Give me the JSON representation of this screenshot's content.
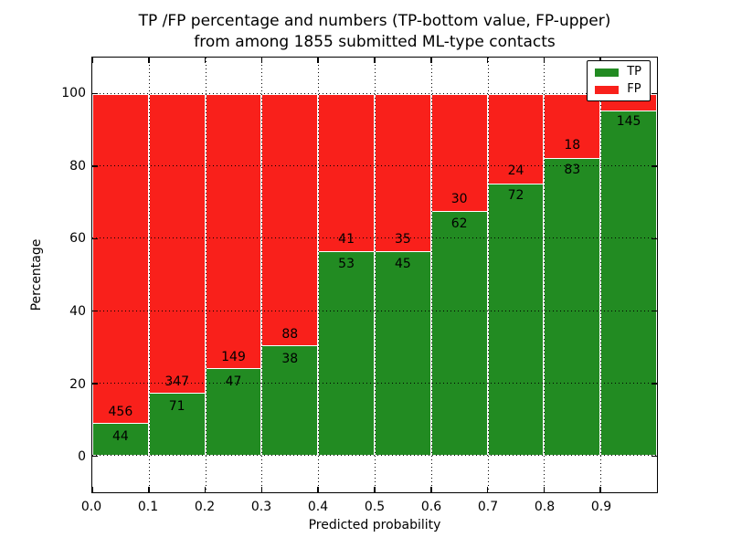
{
  "figure": {
    "title_line1": "TP /FP percentage and numbers (TP-bottom value, FP-upper)",
    "title_line2": "from among 1855 submitted ML-type contacts"
  },
  "chart_data": {
    "type": "bar",
    "stacked": true,
    "title": "TP /FP percentage and numbers (TP-bottom value, FP-upper) from among 1855 submitted ML-type contacts",
    "xlabel": "Predicted probability",
    "ylabel": "Percentage",
    "xlim": [
      0.0,
      1.0
    ],
    "ylim": [
      -10,
      110
    ],
    "x_tick_labels": [
      "0.0",
      "0.1",
      "0.2",
      "0.3",
      "0.4",
      "0.5",
      "0.6",
      "0.7",
      "0.8",
      "0.9"
    ],
    "y_tick_values": [
      0,
      20,
      40,
      60,
      80,
      100
    ],
    "grid_style": "dotted",
    "total_submitted": 1855,
    "colors": {
      "tp": "#228B22",
      "fp": "#F9201B",
      "bar_edge": "#FFFFFF",
      "grid": "#000000",
      "text": "#000000"
    },
    "legend": {
      "position": "upper-right",
      "entries": [
        {
          "label": "TP",
          "color": "#228B22"
        },
        {
          "label": "FP",
          "color": "#F9201B"
        }
      ]
    },
    "bins": [
      {
        "x0": 0.0,
        "x1": 0.1,
        "tp_count": 44,
        "fp_count": 456,
        "tp_percent": 8.8,
        "fp_percent": 91.2
      },
      {
        "x0": 0.1,
        "x1": 0.2,
        "tp_count": 71,
        "fp_count": 347,
        "tp_percent": 17.0,
        "fp_percent": 83.0
      },
      {
        "x0": 0.2,
        "x1": 0.3,
        "tp_count": 47,
        "fp_count": 149,
        "tp_percent": 24.0,
        "fp_percent": 76.0
      },
      {
        "x0": 0.3,
        "x1": 0.4,
        "tp_count": 38,
        "fp_count": 88,
        "tp_percent": 30.2,
        "fp_percent": 69.8
      },
      {
        "x0": 0.4,
        "x1": 0.5,
        "tp_count": 53,
        "fp_count": 41,
        "tp_percent": 56.4,
        "fp_percent": 43.6
      },
      {
        "x0": 0.5,
        "x1": 0.6,
        "tp_count": 45,
        "fp_count": 35,
        "tp_percent": 56.3,
        "fp_percent": 43.7
      },
      {
        "x0": 0.6,
        "x1": 0.7,
        "tp_count": 62,
        "fp_count": 30,
        "tp_percent": 67.4,
        "fp_percent": 32.6
      },
      {
        "x0": 0.7,
        "x1": 0.8,
        "tp_count": 72,
        "fp_count": 24,
        "tp_percent": 75.0,
        "fp_percent": 25.0
      },
      {
        "x0": 0.8,
        "x1": 0.9,
        "tp_count": 83,
        "fp_count": 18,
        "tp_percent": 82.2,
        "fp_percent": 17.8
      },
      {
        "x0": 0.9,
        "x1": 1.0,
        "tp_count": 145,
        "fp_count": null,
        "tp_percent": 95.4,
        "fp_percent": 4.6,
        "fp_label_hidden_by_legend": true
      }
    ]
  }
}
